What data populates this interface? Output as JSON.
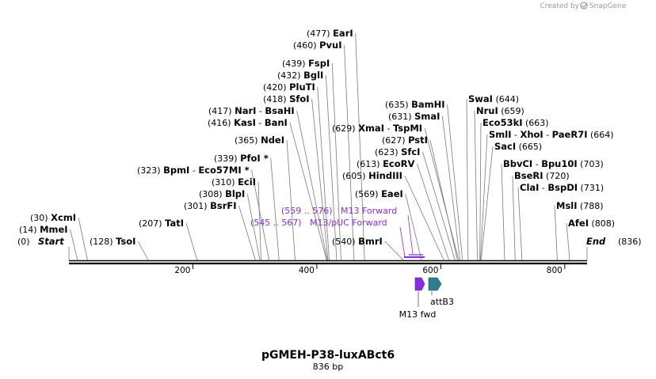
{
  "credit": {
    "prefix": "Created by",
    "brand": "SnapGene"
  },
  "map": {
    "title": "pGMEH-P38-luxABct6",
    "subtitle": "836 bp",
    "length": 836,
    "start_label": "Start",
    "start_pos": "(0)",
    "end_label": "End",
    "end_pos": "(836)"
  },
  "ticks": [
    "200",
    "400",
    "600",
    "800"
  ],
  "enzymes": [
    {
      "pos": "(14)",
      "name": "MmeI"
    },
    {
      "pos": "(30)",
      "name": "XcmI"
    },
    {
      "pos": "(128)",
      "name": "TsoI"
    },
    {
      "pos": "(207)",
      "name": "TatI"
    },
    {
      "pos": "(301)",
      "name": "BsrFI"
    },
    {
      "pos": "(308)",
      "name": "BlpI"
    },
    {
      "pos": "(310)",
      "name": "EciI"
    },
    {
      "pos": "(323)",
      "name": "BpmI",
      "name2": "Eco57MI *"
    },
    {
      "pos": "(339)",
      "name": "PfoI *"
    },
    {
      "pos": "(365)",
      "name": "NdeI"
    },
    {
      "pos": "(416)",
      "name": "KasI",
      "name2": "BanI"
    },
    {
      "pos": "(417)",
      "name": "NarI",
      "name2": "BsaHI"
    },
    {
      "pos": "(418)",
      "name": "SfoI"
    },
    {
      "pos": "(420)",
      "name": "PluTI"
    },
    {
      "pos": "(432)",
      "name": "BglI"
    },
    {
      "pos": "(439)",
      "name": "FspI"
    },
    {
      "pos": "(460)",
      "name": "PvuI"
    },
    {
      "pos": "(477)",
      "name": "EarI"
    },
    {
      "pos": "(540)",
      "name": "BmrI"
    },
    {
      "pos": "(569)",
      "name": "EaeI"
    },
    {
      "pos": "(605)",
      "name": "HindIII"
    },
    {
      "pos": "(613)",
      "name": "EcoRV"
    },
    {
      "pos": "(623)",
      "name": "SfcI"
    },
    {
      "pos": "(627)",
      "name": "PstI"
    },
    {
      "pos": "(629)",
      "name": "XmaI",
      "name2": "TspMI"
    },
    {
      "pos": "(631)",
      "name": "SmaI"
    },
    {
      "pos": "(635)",
      "name": "BamHI"
    },
    {
      "pos": "(644)",
      "name": "SwaI"
    },
    {
      "pos": "(659)",
      "name": "NruI"
    },
    {
      "pos": "(663)",
      "name": "Eco53kI"
    },
    {
      "pos": "(664)",
      "name": "SmlI",
      "name2": "XhoI",
      "name3": "PaeR7I"
    },
    {
      "pos": "(665)",
      "name": "SacI"
    },
    {
      "pos": "(703)",
      "name": "BbvCI",
      "name2": "Bpu10I"
    },
    {
      "pos": "(720)",
      "name": "BseRI"
    },
    {
      "pos": "(731)",
      "name": "ClaI",
      "name2": "BspDI"
    },
    {
      "pos": "(788)",
      "name": "MslI"
    },
    {
      "pos": "(808)",
      "name": "AfeI"
    }
  ],
  "primers": [
    {
      "range": "(559 .. 576)",
      "name": "M13 Forward"
    },
    {
      "range": "(545 .. 567)",
      "name": "M13/pUC Forward"
    }
  ],
  "features": [
    {
      "name": "M13 fwd",
      "color": "#8a2be2"
    },
    {
      "name": "attB3",
      "color": "#2e7d8c"
    }
  ],
  "colors": {
    "primer": "#8a2be2",
    "backbone": "#000000",
    "cut_line": "#7a7a7a"
  }
}
